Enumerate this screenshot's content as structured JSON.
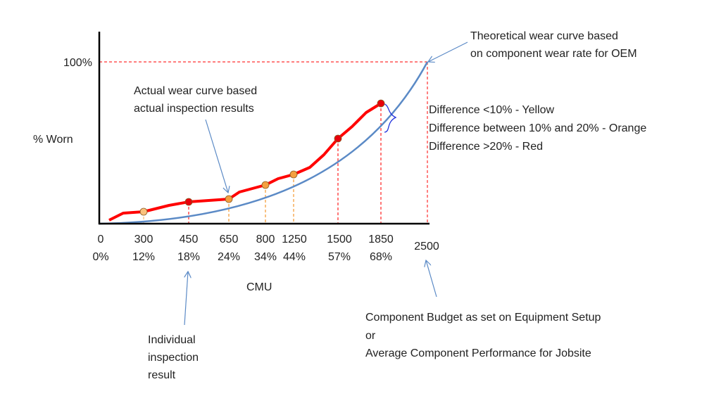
{
  "chart_data": {
    "type": "line",
    "xlabel": "CMU",
    "ylabel": "% Worn",
    "y_top_label": "100%",
    "x_ticks": [
      {
        "cmu": "0",
        "pct": "0%"
      },
      {
        "cmu": "300",
        "pct": "12%"
      },
      {
        "cmu": "450",
        "pct": "18%"
      },
      {
        "cmu": "650",
        "pct": "24%"
      },
      {
        "cmu": "800",
        "pct": "34%"
      },
      {
        "cmu": "1250",
        "pct": "44%"
      },
      {
        "cmu": "1500",
        "pct": "57%"
      },
      {
        "cmu": "1850",
        "pct": "68%"
      },
      {
        "cmu": "2500",
        "pct": ""
      }
    ],
    "inspection_points": [
      {
        "cmu": 300,
        "status_color": "#f9c27e"
      },
      {
        "cmu": 450,
        "status_color": "#e8000b"
      },
      {
        "cmu": 650,
        "status_color": "#f4a040"
      },
      {
        "cmu": 800,
        "status_color": "#f4a040"
      },
      {
        "cmu": 1250,
        "status_color": "#f4a040"
      },
      {
        "cmu": 1500,
        "status_color": "#e8000b"
      },
      {
        "cmu": 1850,
        "status_color": "#e8000b"
      }
    ],
    "series": [
      {
        "role": "actual",
        "color": "#ff0000"
      },
      {
        "role": "theoretical",
        "color": "#5b8ac6"
      }
    ],
    "grid": false
  },
  "annotations": {
    "theoretical": [
      "Theoretical wear curve based",
      "on component wear rate for OEM"
    ],
    "actual": [
      "Actual wear curve based",
      "actual inspection results"
    ],
    "differences": [
      "Difference <10% - Yellow",
      "Difference between 10% and 20% - Orange",
      "Difference >20% - Red"
    ],
    "individual": [
      "Individual",
      "inspection",
      "result"
    ],
    "budget": [
      "Component Budget as set on Equipment Setup",
      "or",
      "Average Component Performance for Jobsite"
    ]
  }
}
